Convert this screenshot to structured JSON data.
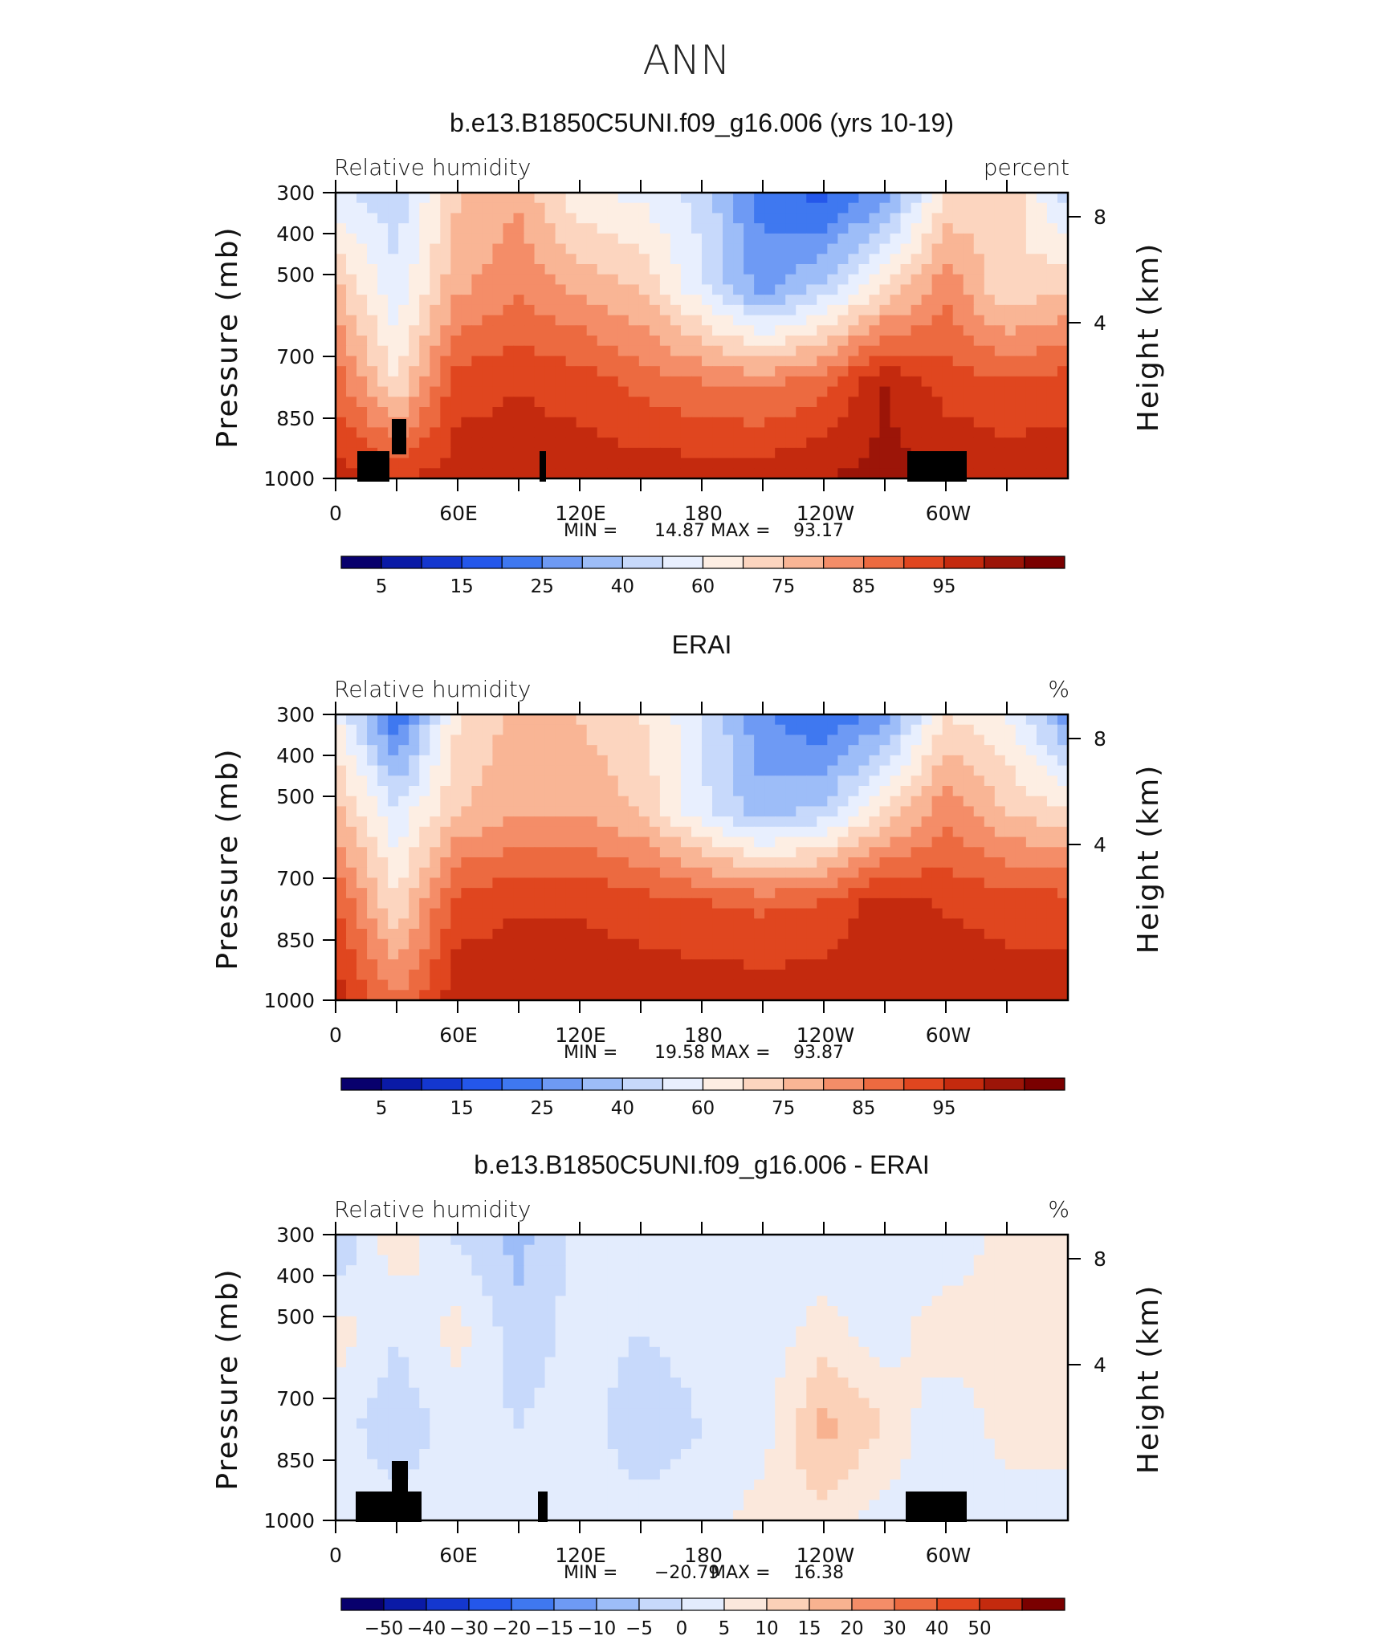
{
  "page": {
    "title": "ANN"
  },
  "colors": {
    "min_blue": "#00008c",
    "white_mid": "#f7f7f7",
    "max_red": "#8c0000",
    "terrain": "#000000"
  },
  "chart_data": [
    {
      "type": "heatmap",
      "title": "b.e13.B1850C5UNI.f09_g16.006 (yrs 10-19)",
      "left_label": "Relative humidity",
      "right_label": "percent",
      "ylabel": "Pressure (mb)",
      "ylabel_right": "Height (km)",
      "x_tick_labels": [
        "0",
        "60E",
        "120E",
        "180",
        "120W",
        "60W"
      ],
      "y_tick_labels": [
        "300",
        "400",
        "500",
        "700",
        "850",
        "1000"
      ],
      "y_right_tick_labels": [
        "8",
        "4"
      ],
      "stats": {
        "min_label": "MIN =",
        "min": "14.87",
        "max_label": "MAX =",
        "max": "93.17"
      },
      "colorbar_labels": [
        "5",
        "15",
        "25",
        "40",
        "60",
        "75",
        "85",
        "95"
      ],
      "summary_field": [
        [
          45,
          40,
          60,
          65,
          50,
          48,
          42,
          25,
          20,
          30,
          55,
          60,
          40
        ],
        [
          62,
          45,
          65,
          70,
          65,
          60,
          45,
          30,
          40,
          55,
          70,
          55,
          60
        ],
        [
          75,
          55,
          80,
          82,
          80,
          75,
          72,
          70,
          75,
          88,
          80,
          78,
          80
        ],
        [
          85,
          82,
          86,
          86,
          86,
          86,
          86,
          86,
          88,
          90,
          88,
          86,
          86
        ]
      ]
    },
    {
      "type": "heatmap",
      "title": "ERAI",
      "left_label": "Relative humidity",
      "right_label": "%",
      "ylabel": "Pressure (mb)",
      "ylabel_right": "Height (km)",
      "x_tick_labels": [
        "0",
        "60E",
        "120E",
        "180",
        "120W",
        "60W"
      ],
      "y_tick_labels": [
        "300",
        "400",
        "500",
        "700",
        "850",
        "1000"
      ],
      "y_right_tick_labels": [
        "8",
        "4"
      ],
      "stats": {
        "min_label": "MIN =",
        "min": "19.58",
        "max_label": "MAX =",
        "max": "93.87"
      },
      "colorbar_labels": [
        "5",
        "15",
        "25",
        "40",
        "60",
        "75",
        "85",
        "95"
      ],
      "summary_field": [
        [
          50,
          22,
          55,
          62,
          60,
          55,
          45,
          28,
          22,
          30,
          55,
          50,
          30
        ],
        [
          62,
          45,
          60,
          65,
          65,
          60,
          45,
          35,
          40,
          55,
          70,
          60,
          55
        ],
        [
          78,
          55,
          80,
          82,
          82,
          80,
          78,
          76,
          78,
          86,
          82,
          80,
          80
        ],
        [
          86,
          72,
          86,
          86,
          86,
          86,
          86,
          86,
          86,
          88,
          88,
          86,
          86
        ]
      ]
    },
    {
      "type": "heatmap",
      "title": "b.e13.B1850C5UNI.f09_g16.006 - ERAI",
      "left_label": "Relative humidity",
      "right_label": "%",
      "ylabel": "Pressure (mb)",
      "ylabel_right": "Height (km)",
      "x_tick_labels": [
        "0",
        "60E",
        "120E",
        "180",
        "120W",
        "60W"
      ],
      "y_tick_labels": [
        "300",
        "400",
        "500",
        "700",
        "850",
        "1000"
      ],
      "y_right_tick_labels": [
        "8",
        "4"
      ],
      "stats": {
        "min_label": "MIN =",
        "min": "−20.79",
        "max_label": "MAX =",
        "max": "16.38"
      },
      "colorbar_labels": [
        "−50",
        "−40",
        "−30",
        "−20",
        "−15",
        "−10",
        "−5",
        "0",
        "5",
        "10",
        "15",
        "20",
        "30",
        "40",
        "50"
      ],
      "summary_field": [
        [
          -12,
          5,
          -6,
          -12,
          -3,
          -5,
          -3,
          -3,
          -3,
          -3,
          -5,
          2,
          3
        ],
        [
          3,
          -5,
          2,
          -8,
          -3,
          -5,
          -3,
          -3,
          2,
          -3,
          4,
          3,
          5
        ],
        [
          -3,
          -8,
          -3,
          -5,
          -3,
          -8,
          -5,
          -3,
          12,
          5,
          -5,
          3,
          3
        ],
        [
          -3,
          -3,
          -3,
          -3,
          -3,
          -3,
          -3,
          3,
          3,
          -3,
          -3,
          -3,
          -3
        ]
      ]
    }
  ]
}
